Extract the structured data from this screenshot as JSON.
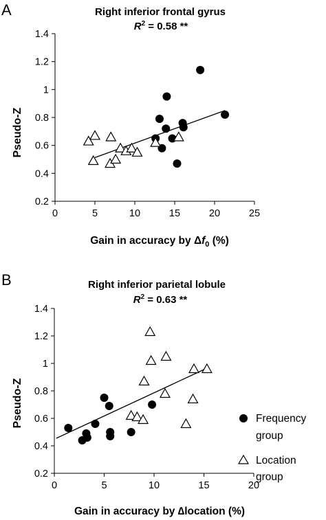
{
  "panels": [
    {
      "letter": "A",
      "title": "Right inferior frontal gyrus",
      "r2_prefix": "R",
      "r2_sup": "2",
      "r2_value": " = 0.58 **",
      "xlabel_parts": [
        "Gain in accuracy by ",
        "Δ",
        "f",
        "0",
        " (%)"
      ],
      "ylabel": "Pseudo-Z"
    },
    {
      "letter": "B",
      "title": "Right inferior parietal lobule",
      "r2_prefix": "R",
      "r2_sup": "2",
      "r2_value": " = 0.63 **",
      "xlabel": "Gain in accuracy by ∆location (%)",
      "ylabel": "Pseudo-Z"
    }
  ],
  "legend": {
    "frequency_line1": "Frequency",
    "frequency_line2": "group",
    "location_line1": "Location",
    "location_line2": "group"
  },
  "chart_data": [
    {
      "type": "scatter",
      "title": "Right inferior frontal gyrus",
      "xlabel": "Gain in accuracy by Δf0 (%)",
      "ylabel": "Pseudo-Z",
      "xlim": [
        0,
        25
      ],
      "ylim": [
        0.2,
        1.4
      ],
      "xticks": [
        "0",
        "5",
        "10",
        "15",
        "20",
        "25"
      ],
      "yticks": [
        "0.2",
        "0.4",
        "0.6",
        "0.8",
        "1",
        "1.2",
        "1.4"
      ],
      "grid": false,
      "series": [
        {
          "name": "Frequency group",
          "marker": "filled-circle",
          "points": [
            [
              12.6,
              0.65
            ],
            [
              13.1,
              0.79
            ],
            [
              13.4,
              0.58
            ],
            [
              13.9,
              0.72
            ],
            [
              14.0,
              0.95
            ],
            [
              14.7,
              0.65
            ],
            [
              15.3,
              0.47
            ],
            [
              16.0,
              0.76
            ],
            [
              16.1,
              0.73
            ],
            [
              18.2,
              1.14
            ],
            [
              21.3,
              0.82
            ]
          ]
        },
        {
          "name": "Location group",
          "marker": "open-triangle",
          "points": [
            [
              4.2,
              0.63
            ],
            [
              4.8,
              0.49
            ],
            [
              5.0,
              0.67
            ],
            [
              6.9,
              0.47
            ],
            [
              7.0,
              0.66
            ],
            [
              7.6,
              0.5
            ],
            [
              8.2,
              0.58
            ],
            [
              8.9,
              0.56
            ],
            [
              9.6,
              0.58
            ],
            [
              10.3,
              0.55
            ],
            [
              12.6,
              0.62
            ],
            [
              15.5,
              0.66
            ]
          ]
        }
      ],
      "regression": [
        [
          5.0,
          0.513
        ],
        [
          21.3,
          0.85
        ]
      ]
    },
    {
      "type": "scatter",
      "title": "Right inferior parietal lobule",
      "xlabel": "Gain in accuracy by ∆location (%)",
      "ylabel": "Pseudo-Z",
      "xlim": [
        0,
        20
      ],
      "ylim": [
        0.2,
        1.4
      ],
      "xticks": [
        "0",
        "5",
        "10",
        "15",
        "20"
      ],
      "yticks": [
        "0.2",
        "0.4",
        "0.6",
        "0.8",
        "1",
        "1.2",
        "1.4"
      ],
      "grid": false,
      "legend": "right",
      "series": [
        {
          "name": "Frequency group",
          "marker": "filled-circle",
          "points": [
            [
              1.4,
              0.53
            ],
            [
              2.8,
              0.44
            ],
            [
              3.2,
              0.49
            ],
            [
              3.3,
              0.46
            ],
            [
              4.1,
              0.56
            ],
            [
              5.0,
              0.75
            ],
            [
              5.5,
              0.69
            ],
            [
              5.6,
              0.5
            ],
            [
              5.6,
              0.47
            ],
            [
              7.7,
              0.5
            ],
            [
              9.8,
              0.7
            ]
          ]
        },
        {
          "name": "Location group",
          "marker": "open-triangle",
          "points": [
            [
              7.7,
              0.62
            ],
            [
              8.3,
              0.61
            ],
            [
              8.9,
              0.59
            ],
            [
              9.0,
              0.87
            ],
            [
              9.6,
              1.23
            ],
            [
              9.7,
              1.02
            ],
            [
              11.1,
              0.78
            ],
            [
              11.2,
              1.05
            ],
            [
              13.2,
              0.56
            ],
            [
              13.9,
              0.74
            ],
            [
              14.0,
              0.96
            ],
            [
              15.3,
              0.96
            ]
          ]
        }
      ],
      "regression": [
        [
          0.2,
          0.455
        ],
        [
          15.3,
          0.965
        ]
      ]
    }
  ]
}
